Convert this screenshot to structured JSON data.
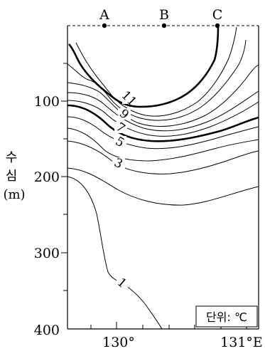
{
  "chart_data": {
    "type": "contour",
    "stations": [
      "A",
      "B",
      "C"
    ],
    "y_axis": {
      "label_chars": [
        "수",
        "심"
      ],
      "unit": "(m)",
      "ticks": [
        "100",
        "200",
        "300",
        "400"
      ]
    },
    "x_axis": {
      "ticks": [
        "130°",
        "131°E"
      ]
    },
    "unit_box": "단위: ℃",
    "contour_labels": [
      "11",
      "9",
      "7",
      "5",
      "3",
      "1"
    ]
  }
}
